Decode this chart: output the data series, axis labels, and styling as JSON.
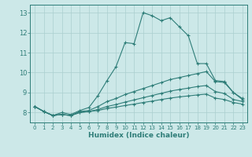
{
  "xlabel": "Humidex (Indice chaleur)",
  "xlim": [
    -0.5,
    23.5
  ],
  "ylim": [
    7.5,
    13.4
  ],
  "xticks": [
    0,
    1,
    2,
    3,
    4,
    5,
    6,
    7,
    8,
    9,
    10,
    11,
    12,
    13,
    14,
    15,
    16,
    17,
    18,
    19,
    20,
    21,
    22,
    23
  ],
  "yticks": [
    8,
    9,
    10,
    11,
    12,
    13
  ],
  "background_color": "#cce8e8",
  "line_color": "#2e7d78",
  "grid_color": "#aacfcf",
  "series": [
    {
      "x": [
        0,
        1,
        2,
        3,
        4,
        5,
        6,
        7,
        8,
        9,
        10,
        11,
        12,
        13,
        14,
        15,
        16,
        17,
        18,
        19,
        20,
        21,
        22,
        23
      ],
      "y": [
        8.3,
        8.05,
        7.85,
        8.0,
        7.9,
        8.1,
        8.25,
        8.85,
        9.6,
        10.3,
        11.5,
        11.45,
        13.0,
        12.85,
        12.6,
        12.75,
        12.3,
        11.85,
        10.45,
        10.45,
        9.6,
        9.55,
        9.0,
        8.7
      ]
    },
    {
      "x": [
        0,
        1,
        2,
        3,
        4,
        5,
        6,
        7,
        8,
        9,
        10,
        11,
        12,
        13,
        14,
        15,
        16,
        17,
        18,
        19,
        20,
        21,
        22,
        23
      ],
      "y": [
        8.3,
        8.05,
        7.85,
        7.9,
        7.85,
        8.05,
        8.1,
        8.3,
        8.55,
        8.7,
        8.9,
        9.05,
        9.2,
        9.35,
        9.5,
        9.65,
        9.75,
        9.85,
        9.95,
        10.05,
        9.55,
        9.5,
        9.0,
        8.65
      ]
    },
    {
      "x": [
        0,
        1,
        2,
        3,
        4,
        5,
        6,
        7,
        8,
        9,
        10,
        11,
        12,
        13,
        14,
        15,
        16,
        17,
        18,
        19,
        20,
        21,
        22,
        23
      ],
      "y": [
        8.3,
        8.05,
        7.85,
        7.9,
        7.85,
        8.0,
        8.05,
        8.15,
        8.3,
        8.4,
        8.52,
        8.63,
        8.74,
        8.85,
        8.96,
        9.07,
        9.15,
        9.22,
        9.3,
        9.35,
        9.05,
        8.95,
        8.65,
        8.55
      ]
    },
    {
      "x": [
        0,
        1,
        2,
        3,
        4,
        5,
        6,
        7,
        8,
        9,
        10,
        11,
        12,
        13,
        14,
        15,
        16,
        17,
        18,
        19,
        20,
        21,
        22,
        23
      ],
      "y": [
        8.3,
        8.05,
        7.85,
        7.9,
        7.85,
        8.0,
        8.05,
        8.1,
        8.2,
        8.27,
        8.35,
        8.42,
        8.5,
        8.57,
        8.65,
        8.72,
        8.78,
        8.83,
        8.88,
        8.92,
        8.72,
        8.65,
        8.5,
        8.42
      ]
    }
  ]
}
